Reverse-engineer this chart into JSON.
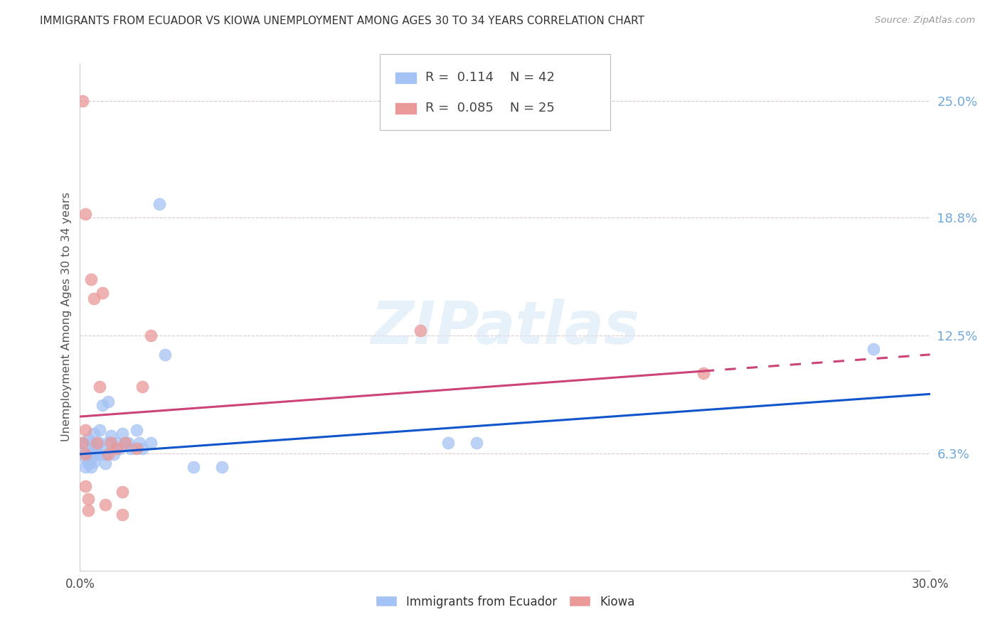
{
  "title": "IMMIGRANTS FROM ECUADOR VS KIOWA UNEMPLOYMENT AMONG AGES 30 TO 34 YEARS CORRELATION CHART",
  "source": "Source: ZipAtlas.com",
  "ylabel": "Unemployment Among Ages 30 to 34 years",
  "xlim": [
    0.0,
    0.3
  ],
  "ylim": [
    0.0,
    0.27
  ],
  "xticks": [
    0.0,
    0.05,
    0.1,
    0.15,
    0.2,
    0.25,
    0.3
  ],
  "xticklabels": [
    "0.0%",
    "",
    "",
    "",
    "",
    "",
    "30.0%"
  ],
  "ytick_positions": [
    0.0625,
    0.125,
    0.188,
    0.25
  ],
  "ytick_labels": [
    "6.3%",
    "12.5%",
    "18.8%",
    "25.0%"
  ],
  "watermark": "ZIPatlas",
  "legend_blue_r": "0.114",
  "legend_blue_n": "42",
  "legend_pink_r": "0.085",
  "legend_pink_n": "25",
  "blue_color": "#a4c2f4",
  "pink_color": "#ea9999",
  "blue_line_color": "#1155cc",
  "pink_line_color": "#cc4477",
  "right_axis_color": "#6fa8dc",
  "blue_scatter": [
    [
      0.001,
      0.068
    ],
    [
      0.001,
      0.063
    ],
    [
      0.002,
      0.06
    ],
    [
      0.002,
      0.055
    ],
    [
      0.003,
      0.07
    ],
    [
      0.003,
      0.062
    ],
    [
      0.003,
      0.057
    ],
    [
      0.004,
      0.068
    ],
    [
      0.004,
      0.06
    ],
    [
      0.004,
      0.055
    ],
    [
      0.005,
      0.073
    ],
    [
      0.005,
      0.065
    ],
    [
      0.005,
      0.058
    ],
    [
      0.006,
      0.067
    ],
    [
      0.006,
      0.062
    ],
    [
      0.007,
      0.075
    ],
    [
      0.007,
      0.068
    ],
    [
      0.007,
      0.062
    ],
    [
      0.008,
      0.088
    ],
    [
      0.009,
      0.062
    ],
    [
      0.009,
      0.057
    ],
    [
      0.01,
      0.09
    ],
    [
      0.01,
      0.068
    ],
    [
      0.011,
      0.072
    ],
    [
      0.012,
      0.062
    ],
    [
      0.013,
      0.068
    ],
    [
      0.014,
      0.065
    ],
    [
      0.015,
      0.073
    ],
    [
      0.016,
      0.068
    ],
    [
      0.017,
      0.068
    ],
    [
      0.018,
      0.065
    ],
    [
      0.02,
      0.075
    ],
    [
      0.021,
      0.068
    ],
    [
      0.022,
      0.065
    ],
    [
      0.025,
      0.068
    ],
    [
      0.028,
      0.195
    ],
    [
      0.03,
      0.115
    ],
    [
      0.04,
      0.055
    ],
    [
      0.05,
      0.055
    ],
    [
      0.13,
      0.068
    ],
    [
      0.14,
      0.068
    ],
    [
      0.28,
      0.118
    ]
  ],
  "pink_scatter": [
    [
      0.001,
      0.25
    ],
    [
      0.001,
      0.068
    ],
    [
      0.002,
      0.19
    ],
    [
      0.002,
      0.062
    ],
    [
      0.002,
      0.075
    ],
    [
      0.002,
      0.045
    ],
    [
      0.003,
      0.032
    ],
    [
      0.003,
      0.038
    ],
    [
      0.004,
      0.155
    ],
    [
      0.005,
      0.145
    ],
    [
      0.006,
      0.068
    ],
    [
      0.007,
      0.098
    ],
    [
      0.008,
      0.148
    ],
    [
      0.009,
      0.035
    ],
    [
      0.01,
      0.062
    ],
    [
      0.011,
      0.068
    ],
    [
      0.013,
      0.065
    ],
    [
      0.015,
      0.042
    ],
    [
      0.015,
      0.03
    ],
    [
      0.016,
      0.068
    ],
    [
      0.02,
      0.065
    ],
    [
      0.022,
      0.098
    ],
    [
      0.025,
      0.125
    ],
    [
      0.12,
      0.128
    ],
    [
      0.22,
      0.105
    ]
  ],
  "blue_trend_x": [
    0.0,
    0.3
  ],
  "blue_trend_y": [
    0.062,
    0.094
  ],
  "pink_trend_x": [
    0.0,
    0.3
  ],
  "pink_trend_y": [
    0.082,
    0.115
  ],
  "pink_trend_dash_start": 0.22,
  "grid_color": "#ddc8c8",
  "background_color": "#ffffff"
}
